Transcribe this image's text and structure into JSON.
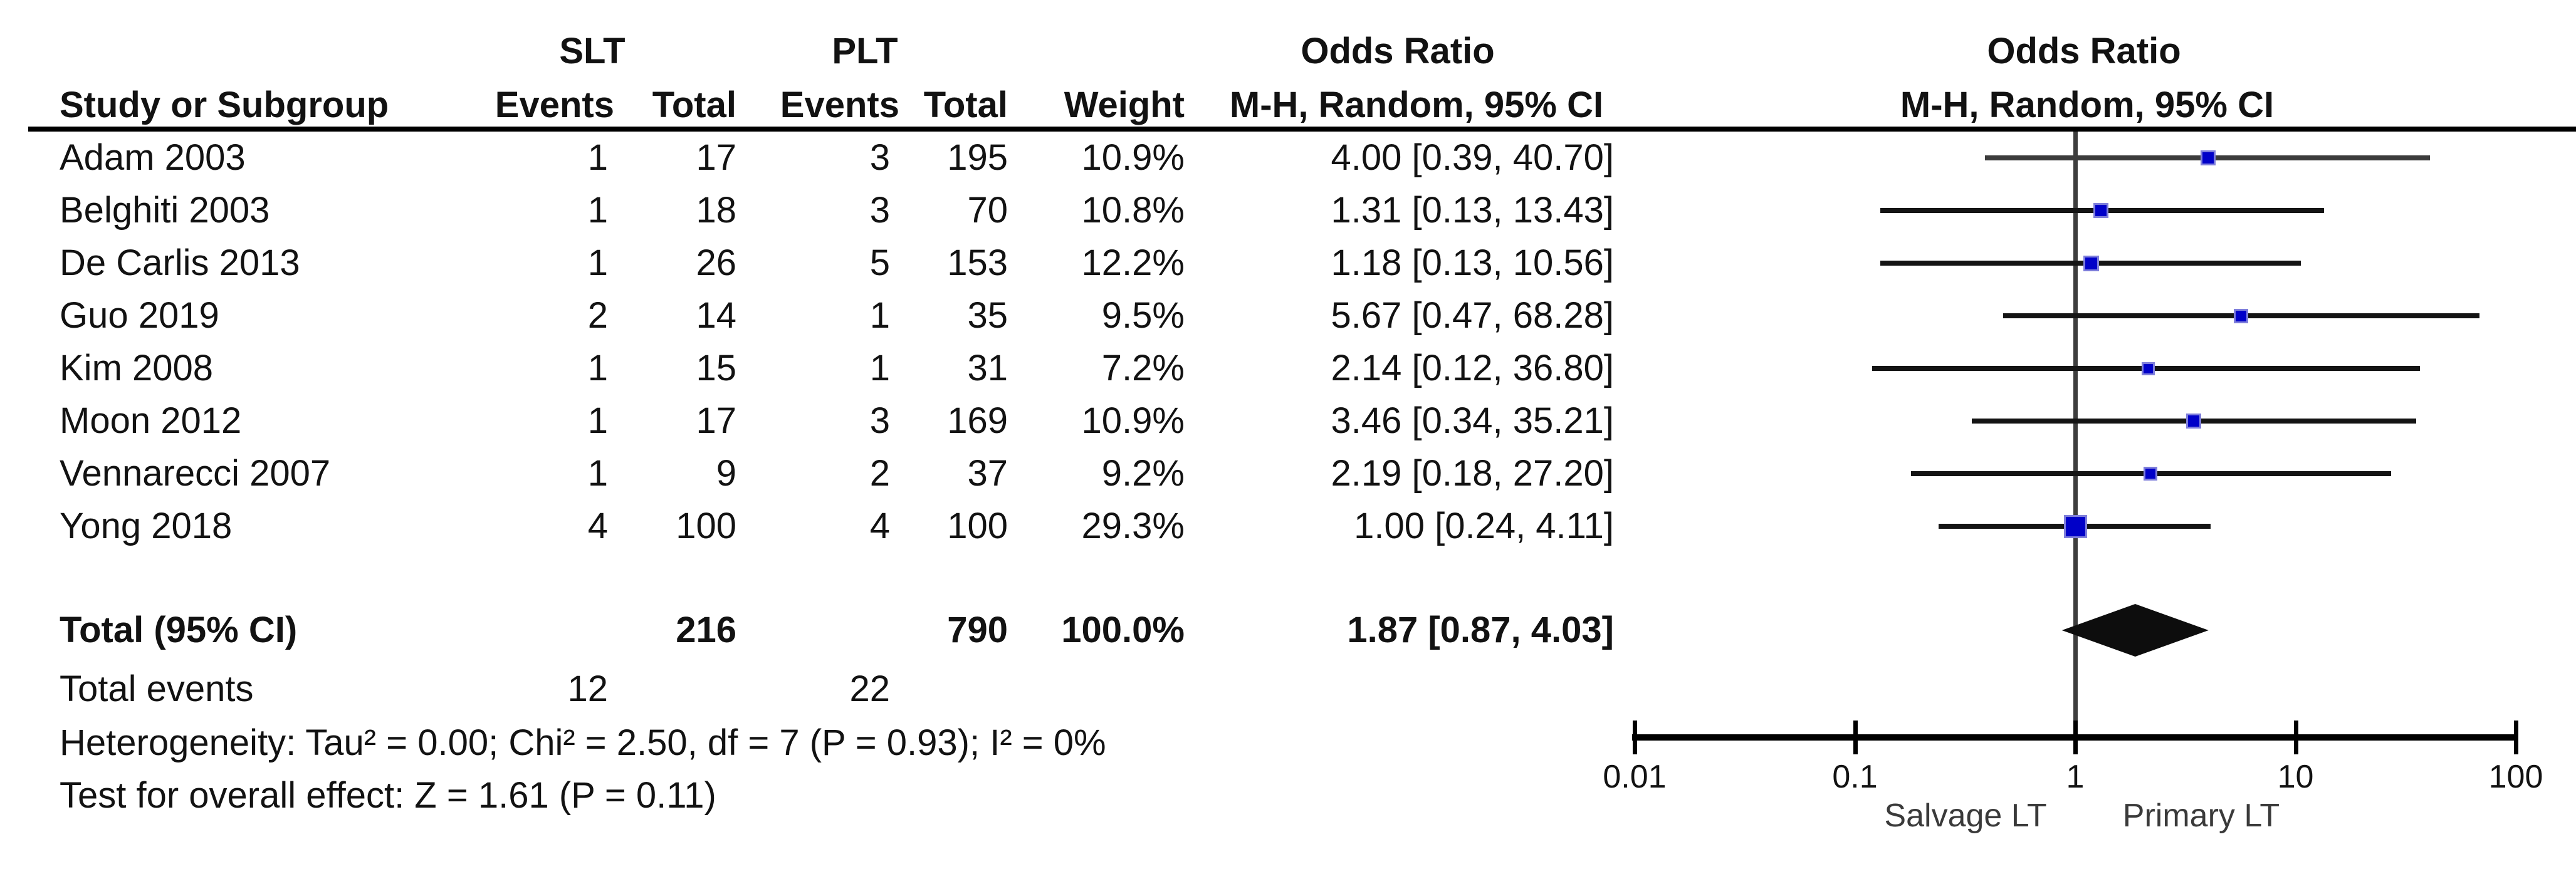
{
  "table": {
    "groups": {
      "slt": "SLT",
      "plt": "PLT",
      "or_text_col": "Odds Ratio",
      "or_plot_col": "Odds Ratio"
    },
    "headers": {
      "study": "Study or Subgroup",
      "slt_events": "Events",
      "slt_total": "Total",
      "plt_events": "Events",
      "plt_total": "Total",
      "weight": "Weight",
      "mh_text": "M-H, Random, 95% CI",
      "mh_plot": "M-H, Random, 95% CI"
    },
    "rows": [
      {
        "study": "Adam 2003",
        "e1": "1",
        "t1": "17",
        "e2": "3",
        "t2": "195",
        "weight": "10.9%",
        "or_ci": "4.00 [0.39, 40.70]"
      },
      {
        "study": "Belghiti 2003",
        "e1": "1",
        "t1": "18",
        "e2": "3",
        "t2": "70",
        "weight": "10.8%",
        "or_ci": "1.31 [0.13, 13.43]"
      },
      {
        "study": "De Carlis 2013",
        "e1": "1",
        "t1": "26",
        "e2": "5",
        "t2": "153",
        "weight": "12.2%",
        "or_ci": "1.18 [0.13, 10.56]"
      },
      {
        "study": "Guo 2019",
        "e1": "2",
        "t1": "14",
        "e2": "1",
        "t2": "35",
        "weight": "9.5%",
        "or_ci": "5.67 [0.47, 68.28]"
      },
      {
        "study": "Kim 2008",
        "e1": "1",
        "t1": "15",
        "e2": "1",
        "t2": "31",
        "weight": "7.2%",
        "or_ci": "2.14 [0.12, 36.80]"
      },
      {
        "study": "Moon 2012",
        "e1": "1",
        "t1": "17",
        "e2": "3",
        "t2": "169",
        "weight": "10.9%",
        "or_ci": "3.46 [0.34, 35.21]"
      },
      {
        "study": "Vennarecci 2007",
        "e1": "1",
        "t1": "9",
        "e2": "2",
        "t2": "37",
        "weight": "9.2%",
        "or_ci": "2.19 [0.18, 27.20]"
      },
      {
        "study": "Yong 2018",
        "e1": "4",
        "t1": "100",
        "e2": "4",
        "t2": "100",
        "weight": "29.3%",
        "or_ci": "1.00 [0.24, 4.11]"
      }
    ],
    "total": {
      "label": "Total (95% CI)",
      "t1": "216",
      "t2": "790",
      "weight": "100.0%",
      "or_ci": "1.87 [0.87, 4.03]"
    },
    "total_events": {
      "label": "Total events",
      "e1": "12",
      "e2": "22"
    },
    "heterogeneity": "Heterogeneity: Tau² = 0.00; Chi² = 2.50, df = 7 (P = 0.93); I² = 0%",
    "overall_effect": "Test for overall effect: Z = 1.61 (P = 0.11)"
  },
  "axis": {
    "ticks": [
      "0.01",
      "0.1",
      "1",
      "10",
      "100"
    ],
    "left_label": "Salvage LT",
    "right_label": "Primary LT"
  },
  "colors": {
    "marker_blue": "#0000C8",
    "marker_halo": "#7f7fdb",
    "ci_line": "#141414",
    "ci_line_first_row": "#3c3c3c",
    "null_line": "#3d3d3d",
    "diamond": "#0d0d0d"
  },
  "chart_data": {
    "type": "scatter",
    "subtype": "forest-plot",
    "title": "Odds Ratio",
    "effect_measure": "M-H, Random, 95% CI",
    "x_scale": "log10",
    "x_ticks": [
      0.01,
      0.1,
      1,
      10,
      100
    ],
    "xlim": [
      0.01,
      100
    ],
    "x_left_label": "Salvage LT",
    "x_right_label": "Primary LT",
    "studies": [
      {
        "name": "Adam 2003",
        "slt_events": 1,
        "slt_total": 17,
        "plt_events": 3,
        "plt_total": 195,
        "weight_pct": 10.9,
        "or": 4.0,
        "ci_low": 0.39,
        "ci_high": 40.7
      },
      {
        "name": "Belghiti 2003",
        "slt_events": 1,
        "slt_total": 18,
        "plt_events": 3,
        "plt_total": 70,
        "weight_pct": 10.8,
        "or": 1.31,
        "ci_low": 0.13,
        "ci_high": 13.43
      },
      {
        "name": "De Carlis 2013",
        "slt_events": 1,
        "slt_total": 26,
        "plt_events": 5,
        "plt_total": 153,
        "weight_pct": 12.2,
        "or": 1.18,
        "ci_low": 0.13,
        "ci_high": 10.56
      },
      {
        "name": "Guo 2019",
        "slt_events": 2,
        "slt_total": 14,
        "plt_events": 1,
        "plt_total": 35,
        "weight_pct": 9.5,
        "or": 5.67,
        "ci_low": 0.47,
        "ci_high": 68.28
      },
      {
        "name": "Kim 2008",
        "slt_events": 1,
        "slt_total": 15,
        "plt_events": 1,
        "plt_total": 31,
        "weight_pct": 7.2,
        "or": 2.14,
        "ci_low": 0.12,
        "ci_high": 36.8
      },
      {
        "name": "Moon 2012",
        "slt_events": 1,
        "slt_total": 17,
        "plt_events": 3,
        "plt_total": 169,
        "weight_pct": 10.9,
        "or": 3.46,
        "ci_low": 0.34,
        "ci_high": 35.21
      },
      {
        "name": "Vennarecci 2007",
        "slt_events": 1,
        "slt_total": 9,
        "plt_events": 2,
        "plt_total": 37,
        "weight_pct": 9.2,
        "or": 2.19,
        "ci_low": 0.18,
        "ci_high": 27.2
      },
      {
        "name": "Yong 2018",
        "slt_events": 4,
        "slt_total": 100,
        "plt_events": 4,
        "plt_total": 100,
        "weight_pct": 29.3,
        "or": 1.0,
        "ci_low": 0.24,
        "ci_high": 4.11
      }
    ],
    "overall": {
      "or": 1.87,
      "ci_low": 0.87,
      "ci_high": 4.03,
      "slt_total": 216,
      "plt_total": 790,
      "weight_pct": 100.0,
      "slt_events": 12,
      "plt_events": 22,
      "tau2": 0.0,
      "chi2": 2.5,
      "df": 7,
      "p_heterogeneity": 0.93,
      "i2_pct": 0,
      "z": 1.61,
      "p_overall": 0.11
    }
  }
}
